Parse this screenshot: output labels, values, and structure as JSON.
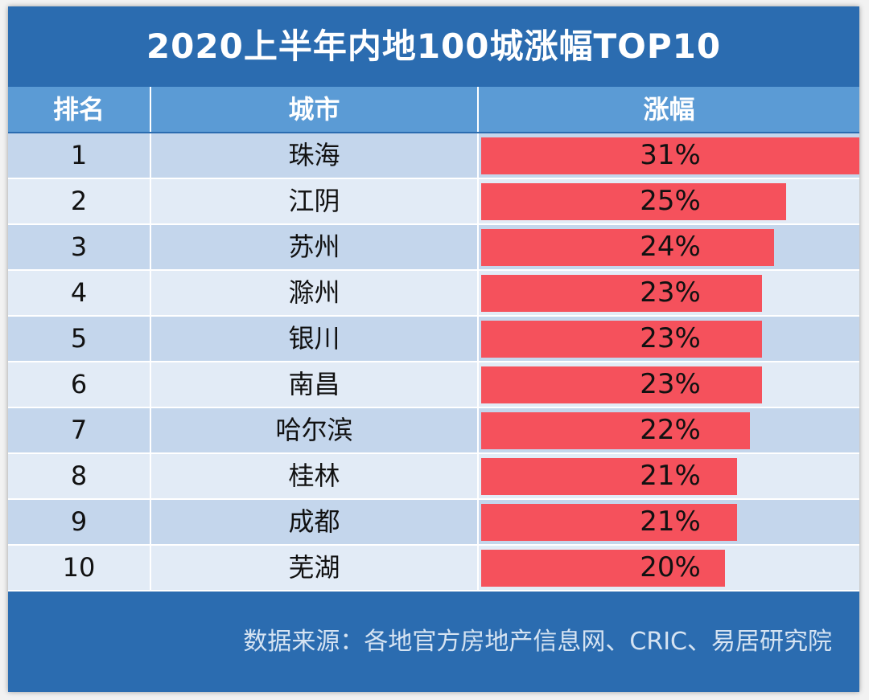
{
  "chart_data": {
    "type": "table",
    "title": "2020上半年内地100城涨幅TOP10",
    "columns": [
      "排名",
      "城市",
      "涨幅"
    ],
    "rows": [
      {
        "rank": "1",
        "city": "珠海",
        "change_label": "31%",
        "change": 31
      },
      {
        "rank": "2",
        "city": "江阴",
        "change_label": "25%",
        "change": 25
      },
      {
        "rank": "3",
        "city": "苏州",
        "change_label": "24%",
        "change": 24
      },
      {
        "rank": "4",
        "city": "滁州",
        "change_label": "23%",
        "change": 23
      },
      {
        "rank": "5",
        "city": "银川",
        "change_label": "23%",
        "change": 23
      },
      {
        "rank": "6",
        "city": "南昌",
        "change_label": "23%",
        "change": 23
      },
      {
        "rank": "7",
        "city": "哈尔滨",
        "change_label": "22%",
        "change": 22
      },
      {
        "rank": "8",
        "city": "桂林",
        "change_label": "21%",
        "change": 21
      },
      {
        "rank": "9",
        "city": "成都",
        "change_label": "21%",
        "change": 21
      },
      {
        "rank": "10",
        "city": "芜湖",
        "change_label": "20%",
        "change": 20
      }
    ],
    "bar_max": 31,
    "bar_color": "#f5515c"
  },
  "footer": {
    "source": "数据来源：各地官方房地产信息网、CRIC、易居研究院"
  },
  "colors": {
    "frame": "#2b6cb0",
    "header": "#5b9bd5",
    "row_dark": "#c4d6ec",
    "row_light": "#e2ebf6"
  }
}
